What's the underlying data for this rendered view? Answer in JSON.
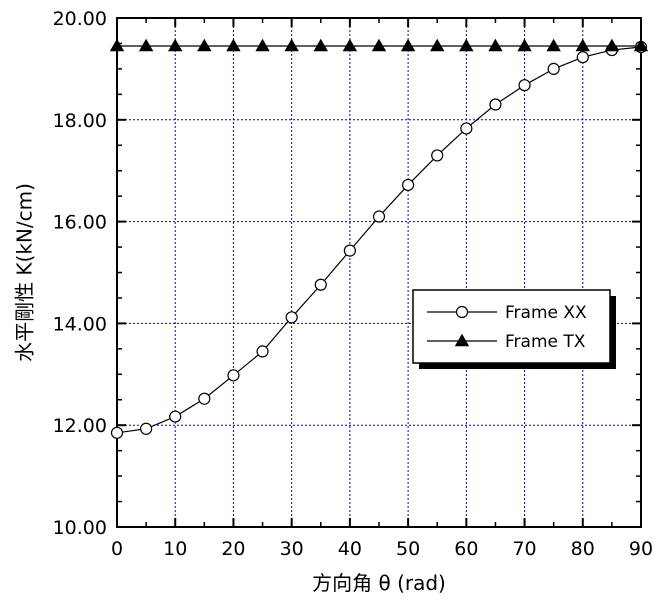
{
  "chart_data": {
    "type": "line",
    "title": "",
    "xlabel": "方向角 θ (rad)",
    "ylabel": "水平剛性 K(kN/cm)",
    "xlim": [
      0,
      90
    ],
    "ylim": [
      10,
      20
    ],
    "x_ticks": [
      0,
      10,
      20,
      30,
      40,
      50,
      60,
      70,
      80,
      90
    ],
    "x_tick_labels": [
      "0",
      "10",
      "20",
      "30",
      "40",
      "50",
      "60",
      "70",
      "80",
      "90"
    ],
    "y_ticks": [
      10,
      12,
      14,
      16,
      18,
      20
    ],
    "y_tick_labels": [
      "10.00",
      "12.00",
      "14.00",
      "16.00",
      "18.00",
      "20.00"
    ],
    "grid": true,
    "grid_color": "#0000cc",
    "legend_position": "center-right",
    "series": [
      {
        "name": "Frame XX",
        "marker": "open-circle",
        "color": "#000000",
        "x": [
          0,
          5,
          10,
          15,
          20,
          25,
          30,
          35,
          40,
          45,
          50,
          55,
          60,
          65,
          70,
          75,
          80,
          85,
          90
        ],
        "y": [
          11.85,
          11.93,
          12.17,
          12.52,
          12.98,
          13.45,
          14.12,
          14.76,
          15.43,
          16.1,
          16.72,
          17.3,
          17.83,
          18.3,
          18.68,
          19.0,
          19.23,
          19.37,
          19.43
        ]
      },
      {
        "name": "Frame TX",
        "marker": "filled-triangle",
        "color": "#000000",
        "x": [
          0,
          5,
          10,
          15,
          20,
          25,
          30,
          35,
          40,
          45,
          50,
          55,
          60,
          65,
          70,
          75,
          80,
          85,
          90
        ],
        "y": [
          19.45,
          19.45,
          19.45,
          19.45,
          19.45,
          19.45,
          19.45,
          19.45,
          19.45,
          19.45,
          19.45,
          19.45,
          19.45,
          19.45,
          19.45,
          19.45,
          19.45,
          19.45,
          19.45
        ]
      }
    ]
  }
}
